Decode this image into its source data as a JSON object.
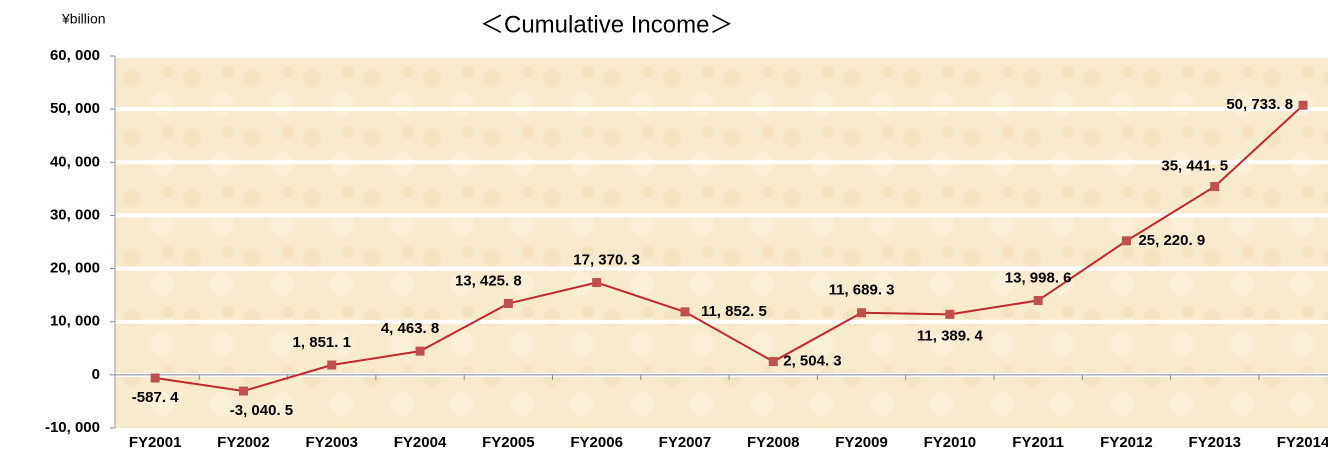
{
  "chart_data": {
    "type": "line",
    "title": "＜Cumulative Income＞",
    "y_label": "¥billion",
    "categories": [
      "FY2001",
      "FY2002",
      "FY2003",
      "FY2004",
      "FY2005",
      "FY2006",
      "FY2007",
      "FY2008",
      "FY2009",
      "FY2010",
      "FY2011",
      "FY2012",
      "FY2013",
      "FY2014"
    ],
    "series": [
      {
        "name": "Cumulative Income",
        "color": "#c0282d",
        "values": [
          -587.4,
          -3040.5,
          1851.1,
          4463.8,
          13425.8,
          17370.3,
          11852.5,
          2504.3,
          11689.3,
          11389.4,
          13998.6,
          25220.9,
          35441.5,
          50733.8
        ],
        "value_labels": [
          "-587. 4",
          "-3, 040. 5",
          "1, 851. 1",
          "4, 463. 8",
          "13, 425. 8",
          "17, 370. 3",
          "11, 852. 5",
          "2, 504. 3",
          "11, 689. 3",
          "11, 389. 4",
          "13, 998. 6",
          "25, 220. 9",
          "35, 441. 5",
          "50, 733. 8"
        ]
      }
    ],
    "ylim": [
      -10000,
      60000
    ],
    "yticks": [
      {
        "value": -10000,
        "label": "-10, 000"
      },
      0,
      {
        "value": 10000,
        "label": "10, 000"
      },
      {
        "value": 20000,
        "label": "20, 000"
      },
      {
        "value": 30000,
        "label": "30, 000"
      },
      {
        "value": 40000,
        "label": "40, 000"
      },
      {
        "value": 50000,
        "label": "50, 000"
      },
      {
        "value": 60000,
        "label": "60, 000"
      }
    ],
    "grid": true
  }
}
